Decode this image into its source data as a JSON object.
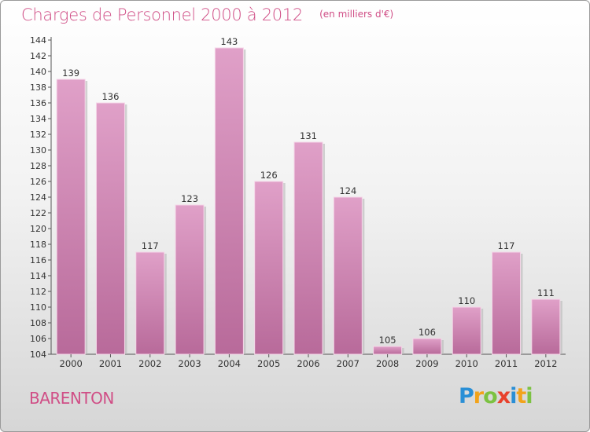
{
  "chart_data": {
    "type": "bar",
    "title": "Charges de Personnel 2000 à 2012",
    "subtitle": "(en milliers d'€)",
    "categories": [
      "2000",
      "2001",
      "2002",
      "2003",
      "2004",
      "2005",
      "2006",
      "2007",
      "2008",
      "2009",
      "2010",
      "2011",
      "2012"
    ],
    "values": [
      139,
      136,
      117,
      123,
      143,
      126,
      131,
      124,
      105,
      106,
      110,
      117,
      111
    ],
    "ylim": [
      104,
      144
    ],
    "yticks": [
      104,
      106,
      108,
      110,
      112,
      114,
      116,
      118,
      120,
      122,
      124,
      126,
      128,
      130,
      132,
      134,
      136,
      138,
      140,
      142,
      144
    ],
    "grid": false,
    "bar_color": "#e0a0c8",
    "bar_color_dark": "#b86a9a"
  },
  "commune": "BARENTON",
  "logo": {
    "letters": [
      {
        "char": "P",
        "color": "#2a8fd6"
      },
      {
        "char": "r",
        "color": "#f2a31b"
      },
      {
        "char": "o",
        "color": "#7cc242"
      },
      {
        "char": "x",
        "color": "#e8412c"
      },
      {
        "char": "i",
        "color": "#2a8fd6"
      },
      {
        "char": "t",
        "color": "#f2a31b"
      },
      {
        "char": "i",
        "color": "#7cc242"
      }
    ]
  }
}
